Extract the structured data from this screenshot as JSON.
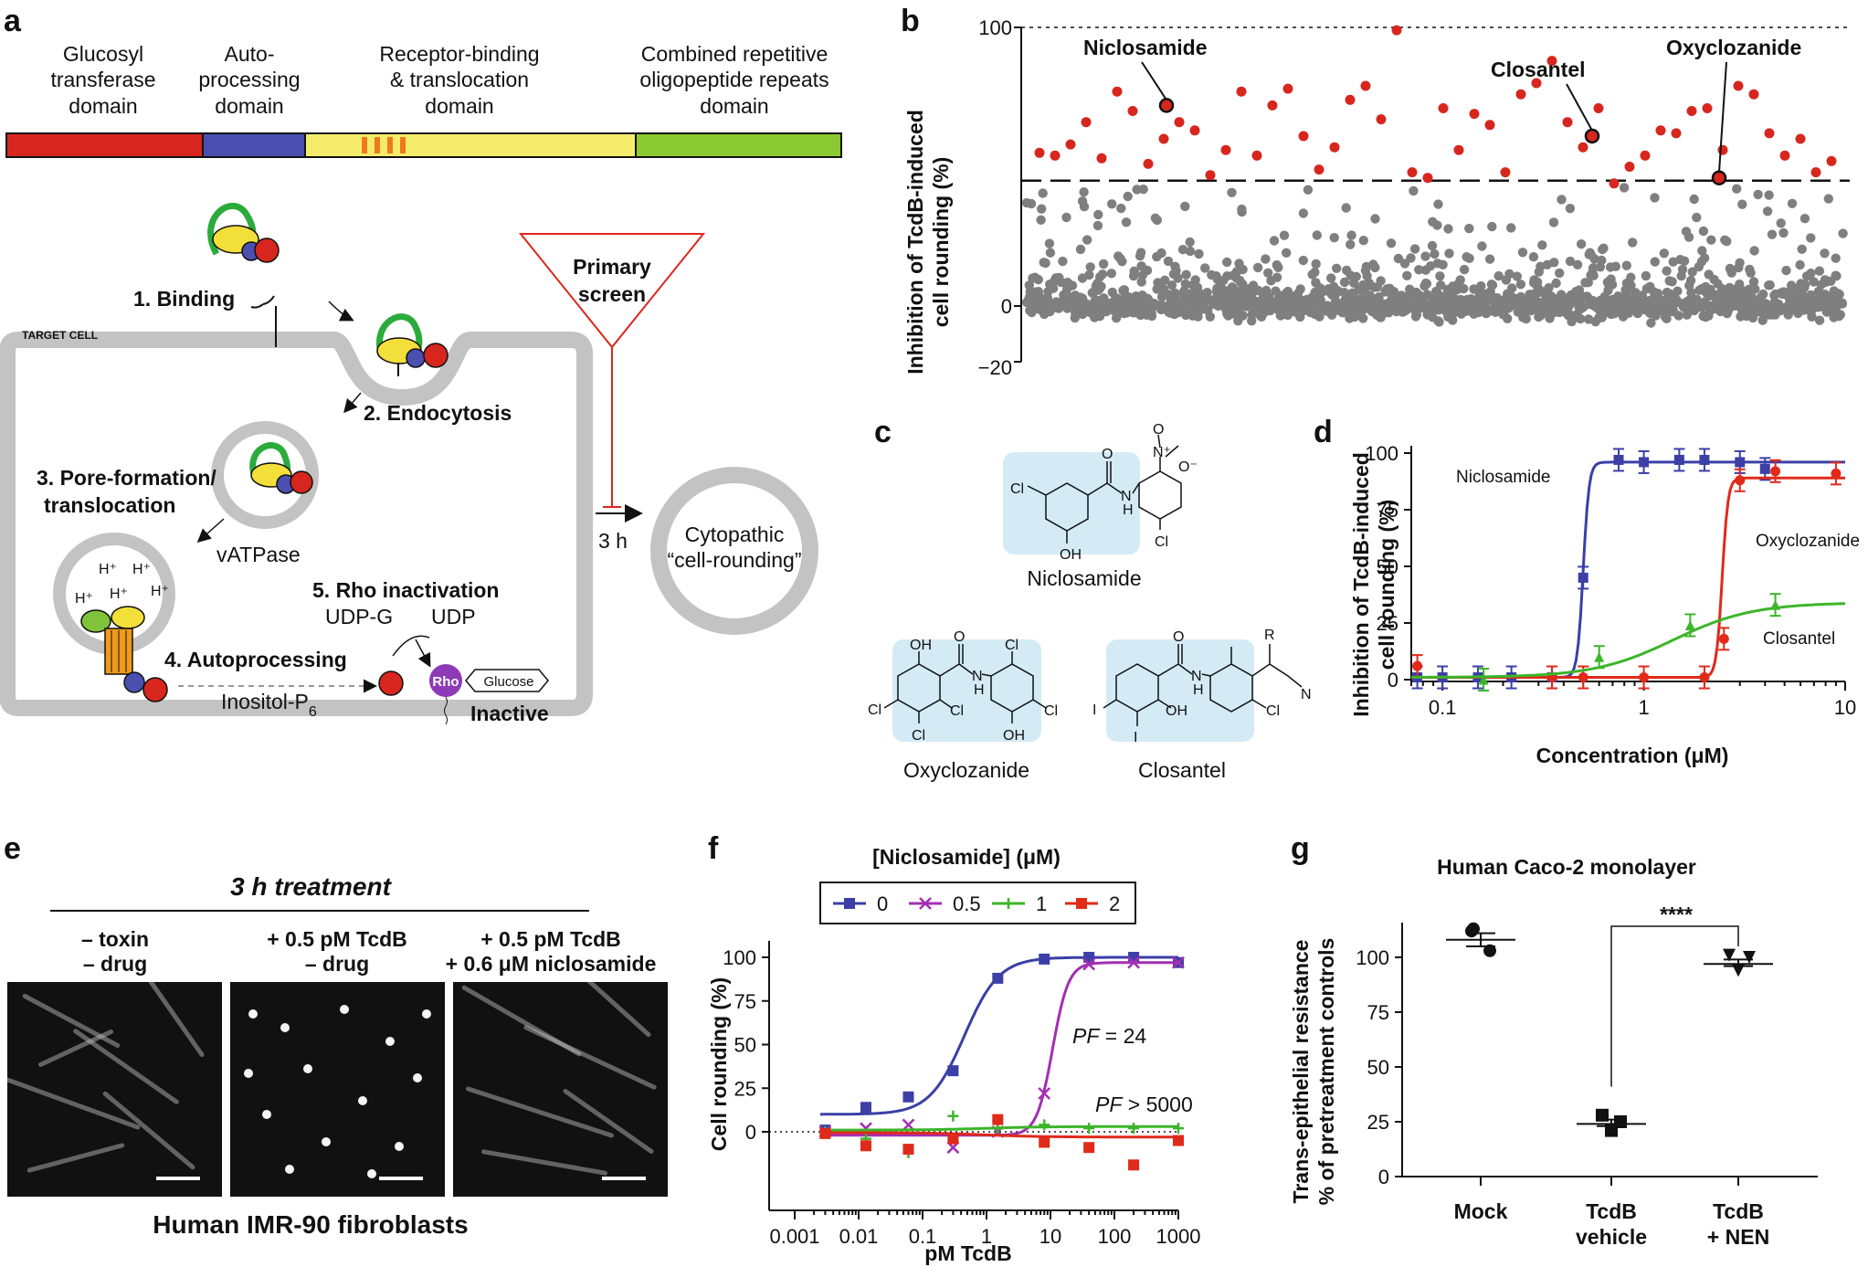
{
  "panels": {
    "a": "a",
    "b": "b",
    "c": "c",
    "d": "d",
    "e": "e",
    "f": "f",
    "g": "g"
  },
  "panel_a": {
    "domains": [
      {
        "line1": "Glucosyl",
        "line2": "transferase",
        "line3": "domain",
        "color": "#d7261e"
      },
      {
        "line1": "Auto-",
        "line2": "processing",
        "line3": "domain",
        "color": "#4a4fb0"
      },
      {
        "line1": "Receptor-binding",
        "line2": "& translocation",
        "line3": "domain",
        "color": "#f5ec6c"
      },
      {
        "line1": "Combined repetitive",
        "line2": "oligopeptide repeats",
        "line3": "domain",
        "color": "#8ac932"
      }
    ],
    "step1": "1. Binding",
    "target_cell": "TARGET CELL",
    "step2": "2. Endocytosis",
    "step3a": "3. Pore-formation/",
    "step3b": "translocation",
    "vatpase": "vATPase",
    "proton": "H⁺",
    "step4": "4. Autoprocessing",
    "step5": "5. Rho inactivation",
    "udpg": "UDP-G",
    "udp": "UDP",
    "inositol": "Inositol-P",
    "inositol_sub": "6",
    "rho": "Rho",
    "glucose": "Glucose",
    "inactive": "Inactive",
    "funnel_line1": "Primary",
    "funnel_line2": "screen",
    "time": "3 h",
    "cyto_line1": "Cytopathic",
    "cyto_line2": "“cell-rounding”"
  },
  "panel_b": {
    "ylabel_line1": "Inhibition of TcdB-induced",
    "ylabel_line2": "cell rounding (%)",
    "yticks": [
      "100",
      "0",
      "−20"
    ],
    "labels": [
      "Niclosamide",
      "Closantel",
      "Oxyclozanide"
    ],
    "hit_color": "#d7261e",
    "nonhit_color": "#7f7f7f"
  },
  "panel_c": {
    "compounds": [
      "Niclosamide",
      "Oxyclozanide",
      "Closantel"
    ],
    "atoms": {
      "cl": "Cl",
      "n": "N",
      "h": "H",
      "oh": "OH",
      "o": "O",
      "ominus": "O⁻",
      "nplus": "N⁺",
      "i": "I",
      "r": "R"
    }
  },
  "panel_d": {
    "ylabel_line1": "Inhibition of TcdB-induced",
    "ylabel_line2": "cell rounding (%)",
    "xlabel": "Concentration (μM)",
    "yticks": [
      "100",
      "75",
      "50",
      "25",
      "0"
    ],
    "xticks": [
      "0.1",
      "1",
      "10"
    ],
    "series_labels": [
      "Niclosamide",
      "Oxyclozanide",
      "Closantel"
    ]
  },
  "panel_e": {
    "title": "3 h treatment",
    "col1_line1": "– toxin",
    "col1_line2": "– drug",
    "col2_line1": "+ 0.5 pM TcdB",
    "col2_line2": "– drug",
    "col3_line1": "+ 0.5 pM TcdB",
    "col3_line2": "+ 0.6 μM niclosamide",
    "caption": "Human IMR-90 fibroblasts"
  },
  "panel_f": {
    "legend_title": "[Niclosamide] (μM)",
    "legend": [
      "0",
      "0.5",
      "1",
      "2"
    ],
    "ylabel": "Cell rounding (%)",
    "xlabel": "pM TcdB",
    "yticks": [
      "100",
      "75",
      "50",
      "25",
      "0"
    ],
    "xticks": [
      "0.001",
      "0.01",
      "0.1",
      "1",
      "10",
      "100",
      "1000"
    ],
    "pf1_italic": "PF",
    "pf1_rest": " = 24",
    "pf2_italic": "PF",
    "pf2_rest": " > 5000"
  },
  "panel_g": {
    "title": "Human Caco-2 monolayer",
    "ylabel_line1": "Trans-epithelial resistance",
    "ylabel_line2": "% of pretreatment controls",
    "yticks": [
      "100",
      "75",
      "50",
      "25",
      "0"
    ],
    "groups": [
      {
        "line1": "Mock",
        "line2": ""
      },
      {
        "line1": "TcdB",
        "line2": "vehicle"
      },
      {
        "line1": "TcdB",
        "line2": "+ NEN"
      }
    ],
    "significance": "****"
  },
  "chart_data": [
    {
      "type": "scatter",
      "panel": "b",
      "ylabel": "Inhibition of TcdB-induced cell rounding (%)",
      "ylim": [
        -20,
        100
      ],
      "threshold": 45,
      "highlight": [
        {
          "name": "Niclosamide",
          "y": 72
        },
        {
          "name": "Closantel",
          "y": 61
        },
        {
          "name": "Oxyclozanide",
          "y": 46
        }
      ],
      "hits_y": [
        55,
        54,
        58,
        66,
        53,
        77,
        70,
        51,
        60,
        66,
        63,
        47,
        56,
        77,
        54,
        72,
        78,
        61,
        49,
        57,
        74,
        79,
        67,
        99,
        48,
        46,
        71,
        56,
        69,
        65,
        48,
        76,
        80,
        88,
        66,
        57,
        71,
        44,
        50,
        54,
        63,
        62,
        70,
        71,
        56,
        79,
        76,
        62,
        54,
        60,
        48,
        52
      ]
    },
    {
      "type": "line",
      "panel": "d",
      "xlabel": "Concentration (μM)",
      "ylabel": "Inhibition of TcdB-induced cell rounding (%)",
      "xscale": "log",
      "xlim": [
        0.07,
        10
      ],
      "ylim": [
        0,
        100
      ],
      "series": [
        {
          "name": "Niclosamide",
          "color": "#3b3fa6",
          "x": [
            0.075,
            0.1,
            0.15,
            0.22,
            0.35,
            0.5,
            0.75,
            1,
            1.5,
            2,
            3,
            4
          ],
          "y": [
            1,
            1,
            1,
            1,
            1,
            45,
            97,
            96,
            97,
            97,
            96,
            93
          ]
        },
        {
          "name": "Oxyclozanide",
          "color": "#e02a1a",
          "x": [
            0.075,
            0.35,
            0.5,
            1,
            2,
            2.5,
            3,
            4.5,
            9
          ],
          "y": [
            6,
            1,
            1,
            1,
            1,
            18,
            88,
            92,
            91
          ]
        },
        {
          "name": "Closantel",
          "color": "#3cb52a",
          "x": [
            0.16,
            0.6,
            1.7,
            4.5
          ],
          "y": [
            0,
            10,
            24,
            33
          ]
        }
      ]
    },
    {
      "type": "line",
      "panel": "f",
      "xlabel": "pM TcdB",
      "ylabel": "Cell rounding (%)",
      "xscale": "log",
      "xlim": [
        0.001,
        1000
      ],
      "ylim": [
        -25,
        100
      ],
      "series": [
        {
          "name": "0",
          "color": "#3b3fa6",
          "x": [
            0.003,
            0.013,
            0.06,
            0.3,
            1.5,
            8,
            40,
            200,
            1000
          ],
          "y": [
            1,
            14,
            20,
            35,
            88,
            99,
            100,
            100,
            97
          ]
        },
        {
          "name": "0.5",
          "color": "#a32fb2",
          "x": [
            0.003,
            0.013,
            0.06,
            0.3,
            1.5,
            8,
            40,
            200,
            1000
          ],
          "y": [
            0,
            2,
            4,
            -9,
            0,
            22,
            96,
            97,
            97
          ]
        },
        {
          "name": "1",
          "color": "#3cb52a",
          "x": [
            0.003,
            0.013,
            0.06,
            0.3,
            1.5,
            8,
            40,
            200,
            1000
          ],
          "y": [
            0,
            -4,
            -12,
            9,
            2,
            4,
            2,
            2,
            2
          ]
        },
        {
          "name": "2",
          "color": "#e02a1a",
          "x": [
            0.003,
            0.013,
            0.06,
            0.3,
            1.5,
            8,
            40,
            200,
            1000
          ],
          "y": [
            -1,
            -8,
            -10,
            -4,
            7,
            -6,
            -9,
            -19,
            -5
          ]
        }
      ]
    },
    {
      "type": "scatter",
      "panel": "g",
      "ylabel": "Trans-epithelial resistance % of pretreatment controls",
      "categories": [
        "Mock",
        "TcdB vehicle",
        "TcdB + NEN"
      ],
      "ylim": [
        0,
        125
      ],
      "means": [
        108,
        24,
        97
      ],
      "points": [
        [
          113,
          103,
          112
        ],
        [
          28,
          21,
          25
        ],
        [
          101,
          94,
          100
        ]
      ]
    }
  ]
}
